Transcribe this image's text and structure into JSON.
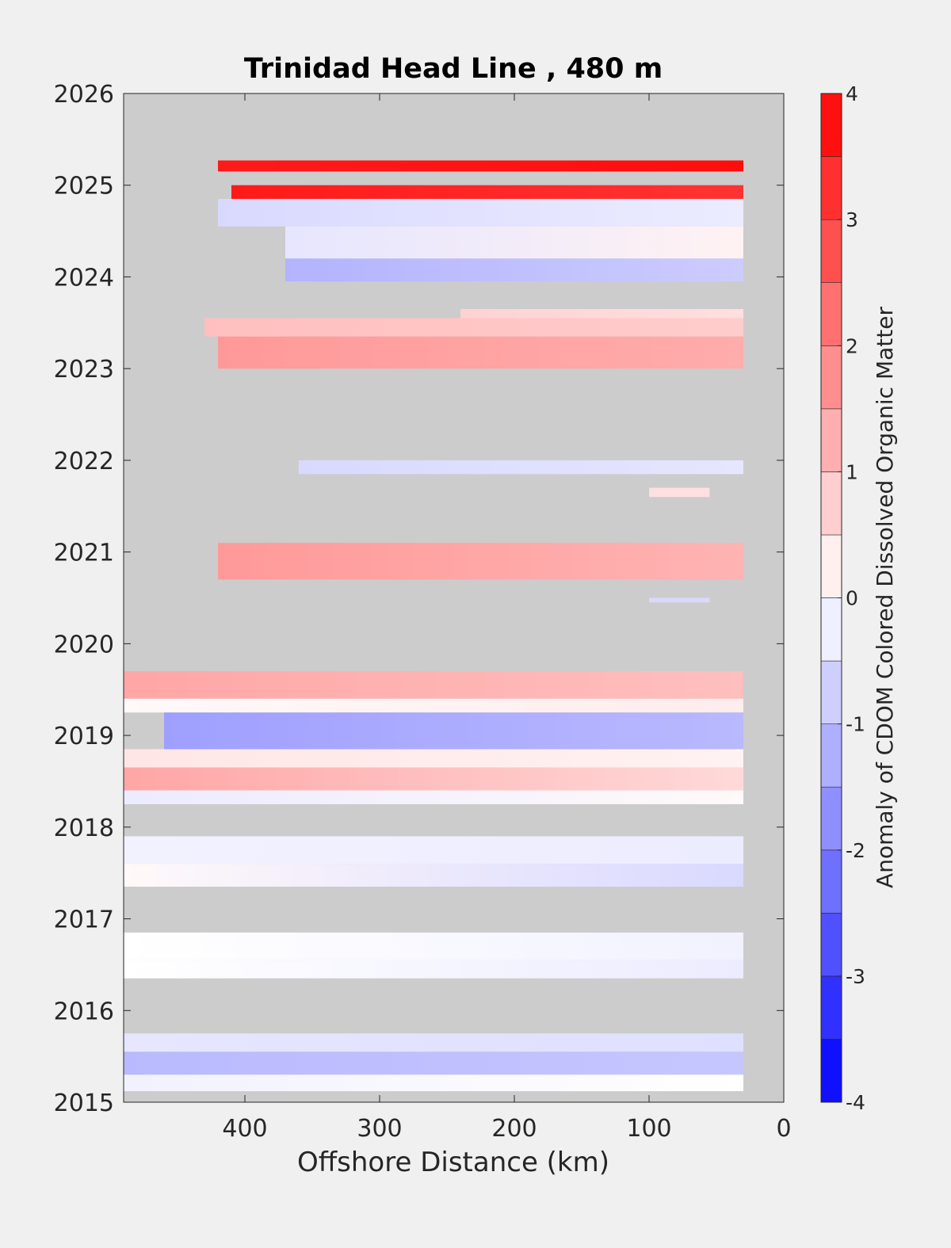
{
  "chart_data": {
    "type": "heatmap",
    "title": "Trinidad Head Line , 480 m",
    "xlabel": "Offshore Distance (km)",
    "ylabel": "",
    "x_reversed": true,
    "xlim": [
      0,
      490
    ],
    "ylim": [
      2015,
      2026
    ],
    "xticks": [
      400,
      300,
      200,
      100,
      0
    ],
    "yticks": [
      2015,
      2016,
      2017,
      2018,
      2019,
      2020,
      2021,
      2022,
      2023,
      2024,
      2025,
      2026
    ],
    "colorbar": {
      "label": "Anomaly of CDOM Colored Dissolved Organic Matter",
      "range": [
        -4,
        4
      ],
      "step": 0.5,
      "ticks": [
        4,
        3,
        2,
        1,
        0,
        -1,
        -2,
        -3,
        -4
      ],
      "low_color": "#0000ff",
      "mid_color": "#ffffff",
      "high_color": "#ff0000"
    },
    "missing_color": "#cccccc",
    "bands": [
      {
        "y": [
          2025.15,
          2025.27
        ],
        "x": [
          30,
          420
        ],
        "values": [
          3.8,
          3.6
        ]
      },
      {
        "y": [
          2024.85,
          2025.0
        ],
        "x": [
          30,
          410
        ],
        "values": [
          3.2,
          3.6
        ]
      },
      {
        "y": [
          2024.55,
          2024.85
        ],
        "x": [
          30,
          420
        ],
        "values": [
          -0.3,
          -0.6
        ]
      },
      {
        "y": [
          2024.2,
          2024.55
        ],
        "x": [
          30,
          370
        ],
        "values": [
          0.2,
          -0.4
        ]
      },
      {
        "y": [
          2023.95,
          2024.2
        ],
        "x": [
          30,
          370
        ],
        "values": [
          -0.8,
          -1.2
        ]
      },
      {
        "y": [
          2023.55,
          2023.65
        ],
        "x": [
          30,
          240
        ],
        "values": [
          0.5,
          0.7
        ]
      },
      {
        "y": [
          2023.35,
          2023.55
        ],
        "x": [
          30,
          430
        ],
        "values": [
          0.8,
          1.0
        ]
      },
      {
        "y": [
          2023.0,
          2023.35
        ],
        "x": [
          30,
          420
        ],
        "values": [
          1.3,
          1.6
        ]
      },
      {
        "y": [
          2021.85,
          2022.0
        ],
        "x": [
          30,
          360
        ],
        "values": [
          -0.4,
          -0.6
        ]
      },
      {
        "y": [
          2021.6,
          2021.7
        ],
        "x": [
          55,
          100
        ],
        "values": [
          0.5,
          0.5
        ]
      },
      {
        "y": [
          2020.7,
          2021.1
        ],
        "x": [
          30,
          420
        ],
        "values": [
          1.2,
          1.6
        ]
      },
      {
        "y": [
          2020.45,
          2020.5
        ],
        "x": [
          55,
          100
        ],
        "values": [
          -0.6,
          -0.6
        ]
      },
      {
        "y": [
          2019.4,
          2019.7
        ],
        "x": [
          30,
          490
        ],
        "values": [
          1.0,
          1.4
        ]
      },
      {
        "y": [
          2019.25,
          2019.4
        ],
        "x": [
          30,
          490
        ],
        "values": [
          0.3,
          0.1
        ]
      },
      {
        "y": [
          2018.85,
          2019.25
        ],
        "x": [
          30,
          460
        ],
        "values": [
          -1.1,
          -1.5
        ]
      },
      {
        "y": [
          2018.65,
          2018.85
        ],
        "x": [
          30,
          490
        ],
        "values": [
          0.2,
          0.4
        ]
      },
      {
        "y": [
          2018.4,
          2018.65
        ],
        "x": [
          30,
          490
        ],
        "values": [
          0.6,
          1.4
        ]
      },
      {
        "y": [
          2018.25,
          2018.4
        ],
        "x": [
          30,
          490
        ],
        "values": [
          0.1,
          -0.3
        ]
      },
      {
        "y": [
          2017.6,
          2017.9
        ],
        "x": [
          30,
          490
        ],
        "values": [
          -0.3,
          -0.2
        ]
      },
      {
        "y": [
          2017.35,
          2017.6
        ],
        "x": [
          30,
          490
        ],
        "values": [
          -0.6,
          0.1
        ]
      },
      {
        "y": [
          2016.55,
          2016.85
        ],
        "x": [
          30,
          490
        ],
        "values": [
          -0.2,
          0.0
        ]
      },
      {
        "y": [
          2016.35,
          2016.55
        ],
        "x": [
          30,
          490
        ],
        "values": [
          -0.3,
          0.0
        ]
      },
      {
        "y": [
          2015.55,
          2015.75
        ],
        "x": [
          30,
          490
        ],
        "values": [
          -0.5,
          -0.4
        ]
      },
      {
        "y": [
          2015.3,
          2015.55
        ],
        "x": [
          30,
          490
        ],
        "values": [
          -0.9,
          -1.1
        ]
      },
      {
        "y": [
          2015.12,
          2015.3
        ],
        "x": [
          30,
          490
        ],
        "values": [
          0.0,
          -0.2
        ]
      }
    ]
  }
}
